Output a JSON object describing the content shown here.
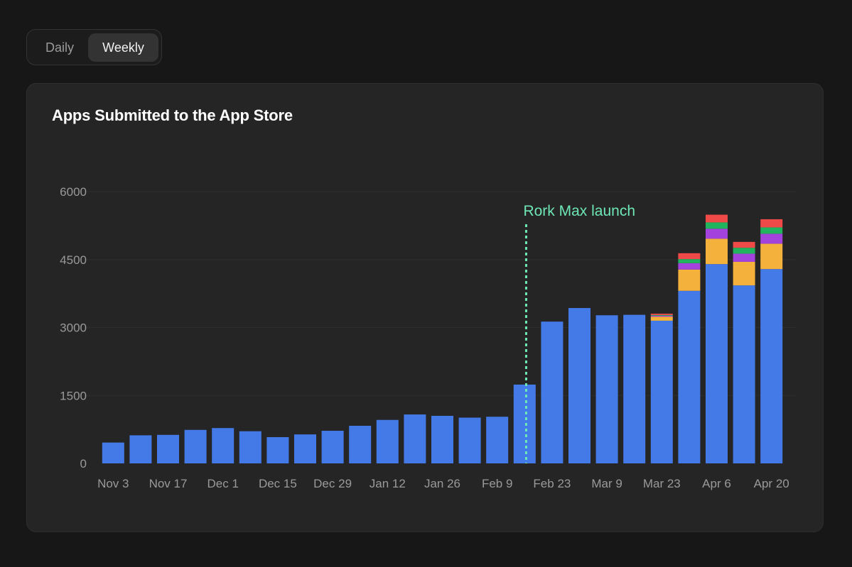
{
  "toggle": {
    "options": [
      "Daily",
      "Weekly"
    ],
    "selected": "Weekly"
  },
  "chart_title": "Apps Submitted to the App Store",
  "chart_data": {
    "type": "bar",
    "stacked": true,
    "title": "Apps Submitted to the App Store",
    "xlabel": "",
    "ylabel": "",
    "ylim": [
      0,
      6000
    ],
    "y_ticks": [
      0,
      1500,
      3000,
      4500,
      6000
    ],
    "x_tick_labels": [
      "Nov 3",
      "Nov 17",
      "Dec 1",
      "Dec 15",
      "Dec 29",
      "Jan 12",
      "Jan 26",
      "Feb 9",
      "Feb 23",
      "Mar 9",
      "Mar 23",
      "Apr 6",
      "Apr 20"
    ],
    "grid": true,
    "categories": [
      "Nov 3",
      "Nov 10",
      "Nov 17",
      "Nov 24",
      "Dec 1",
      "Dec 8",
      "Dec 15",
      "Dec 22",
      "Dec 29",
      "Jan 5",
      "Jan 12",
      "Jan 19",
      "Jan 26",
      "Feb 2",
      "Feb 9",
      "Feb 16",
      "Feb 23",
      "Mar 2",
      "Mar 9",
      "Mar 16",
      "Mar 23",
      "Mar 30",
      "Apr 6",
      "Apr 13",
      "Apr 20"
    ],
    "series": [
      {
        "color": "#4479e8",
        "values": [
          460,
          620,
          630,
          740,
          780,
          710,
          580,
          640,
          720,
          830,
          960,
          1080,
          1050,
          1010,
          1030,
          1740,
          3130,
          3430,
          3270,
          3280,
          3150,
          3810,
          4400,
          3930,
          4290
        ]
      },
      {
        "color": "#f4b13b",
        "values": [
          0,
          0,
          0,
          0,
          0,
          0,
          0,
          0,
          0,
          0,
          0,
          0,
          0,
          0,
          0,
          0,
          0,
          0,
          0,
          0,
          90,
          470,
          560,
          520,
          560
        ]
      },
      {
        "color": "#a342dd",
        "values": [
          0,
          0,
          0,
          0,
          0,
          0,
          0,
          0,
          0,
          0,
          0,
          0,
          0,
          0,
          0,
          0,
          0,
          0,
          0,
          0,
          20,
          140,
          220,
          180,
          220
        ]
      },
      {
        "color": "#22b35e",
        "values": [
          0,
          0,
          0,
          0,
          0,
          0,
          0,
          0,
          0,
          0,
          0,
          0,
          0,
          0,
          0,
          0,
          0,
          0,
          0,
          0,
          15,
          90,
          140,
          130,
          140
        ]
      },
      {
        "color": "#ef4a47",
        "values": [
          0,
          0,
          0,
          0,
          0,
          0,
          0,
          0,
          0,
          0,
          0,
          0,
          0,
          0,
          0,
          0,
          0,
          0,
          0,
          0,
          30,
          130,
          170,
          130,
          180
        ]
      }
    ],
    "annotations": [
      {
        "text": "Rork Max launch",
        "x_between": [
          "Feb 16",
          "Feb 23"
        ],
        "line_style": "dotted",
        "color": "#6ee7b7"
      }
    ]
  }
}
